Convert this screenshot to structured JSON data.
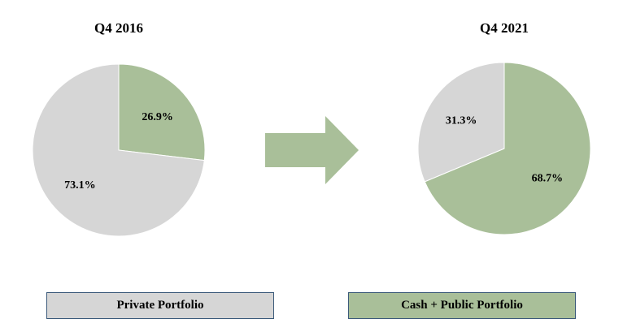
{
  "colors": {
    "private": "#d6d6d6",
    "cash_public": "#a9bf99",
    "arrow": "#a9bf99"
  },
  "legend": {
    "private_label": "Private Portfolio",
    "cash_public_label": "Cash + Public Portfolio"
  },
  "chart_data": [
    {
      "type": "pie",
      "title": "Q4 2016",
      "slices": [
        {
          "name": "Cash + Public Portfolio",
          "value": 26.9,
          "label": "26.9%",
          "color": "#a9bf99"
        },
        {
          "name": "Private Portfolio",
          "value": 73.1,
          "label": "73.1%",
          "color": "#d6d6d6"
        }
      ],
      "start_angle": "12 o'clock",
      "direction": "clockwise"
    },
    {
      "type": "pie",
      "title": "Q4 2021",
      "slices": [
        {
          "name": "Cash + Public Portfolio",
          "value": 68.7,
          "label": "68.7%",
          "color": "#a9bf99"
        },
        {
          "name": "Private Portfolio",
          "value": 31.3,
          "label": "31.3%",
          "color": "#d6d6d6"
        }
      ],
      "start_angle": "12 o'clock",
      "direction": "clockwise"
    }
  ]
}
